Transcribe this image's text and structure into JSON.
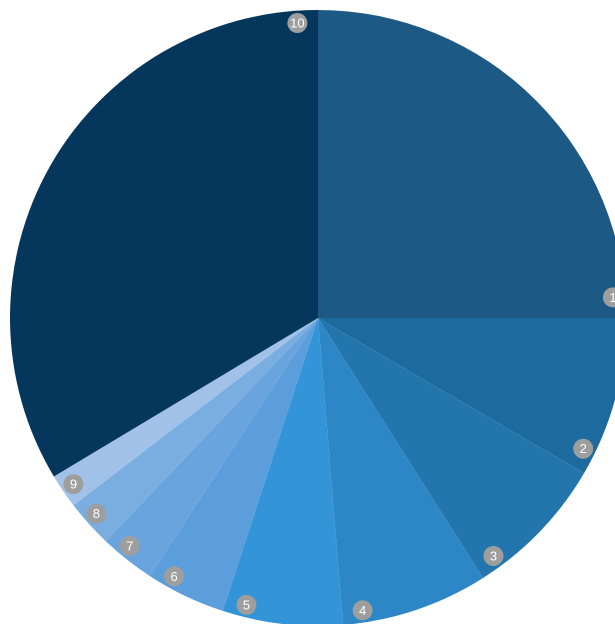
{
  "chart_data": {
    "type": "pie",
    "start": "12 o'clock",
    "direction": "clockwise",
    "slices": [
      {
        "label": "1",
        "value": 25.0,
        "color": "#1c5985"
      },
      {
        "label": "2",
        "value": 8.4,
        "color": "#1d6b9e"
      },
      {
        "label": "3",
        "value": 7.6,
        "color": "#2376ad"
      },
      {
        "label": "4",
        "value": 7.7,
        "color": "#2d86c5"
      },
      {
        "label": "5",
        "value": 6.3,
        "color": "#3394d8"
      },
      {
        "label": "6",
        "value": 4.2,
        "color": "#5b9edb"
      },
      {
        "label": "7",
        "value": 2.9,
        "color": "#6aa4de"
      },
      {
        "label": "8",
        "value": 2.5,
        "color": "#7aaee1"
      },
      {
        "label": "9",
        "value": 1.8,
        "color": "#a1c1e8"
      },
      {
        "label": "10",
        "value": 33.6,
        "color": "#05375d"
      }
    ],
    "label_badge_color": "#9e9e9e"
  }
}
